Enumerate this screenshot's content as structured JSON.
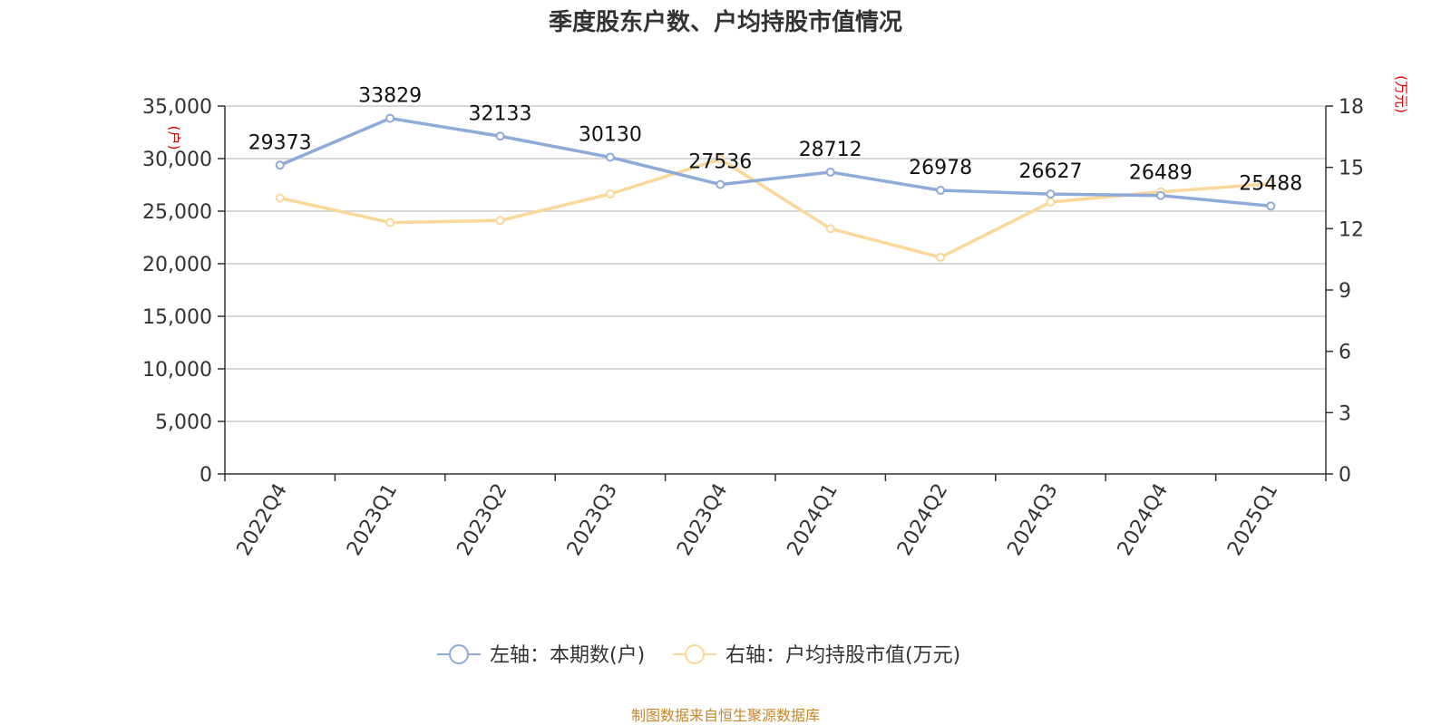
{
  "chart_data": {
    "type": "line",
    "title": "季度股东户数、户均持股市值情况",
    "categories": [
      "2022Q4",
      "2023Q1",
      "2023Q2",
      "2023Q3",
      "2023Q4",
      "2024Q1",
      "2024Q2",
      "2024Q3",
      "2024Q4",
      "2025Q1"
    ],
    "left_axis": {
      "unit": "(户)",
      "range": [
        0,
        35000
      ],
      "ticks": [
        "0",
        "5,000",
        "10,000",
        "15,000",
        "20,000",
        "25,000",
        "30,000",
        "35,000"
      ]
    },
    "right_axis": {
      "unit": "(万元)",
      "range": [
        0,
        18
      ],
      "ticks": [
        "0",
        "3",
        "6",
        "9",
        "12",
        "15",
        "18"
      ]
    },
    "series": [
      {
        "name": "左轴：本期数(户)",
        "axis": "left",
        "color": "#8eaad8",
        "values": [
          29373,
          33829,
          32133,
          30130,
          27536,
          28712,
          26978,
          26627,
          26489,
          25488
        ],
        "labels": [
          "29373",
          "33829",
          "32133",
          "30130",
          "27536",
          "28712",
          "26978",
          "26627",
          "26489",
          "25488"
        ]
      },
      {
        "name": "右轴：户均持股市值(万元)",
        "axis": "right",
        "color": "#fbd89a",
        "values": [
          13.5,
          12.3,
          12.4,
          13.7,
          15.4,
          12.0,
          10.6,
          13.3,
          13.8,
          14.2
        ]
      }
    ],
    "grid": true,
    "legend_position": "bottom"
  },
  "source": "制图数据来自恒生聚源数据库"
}
